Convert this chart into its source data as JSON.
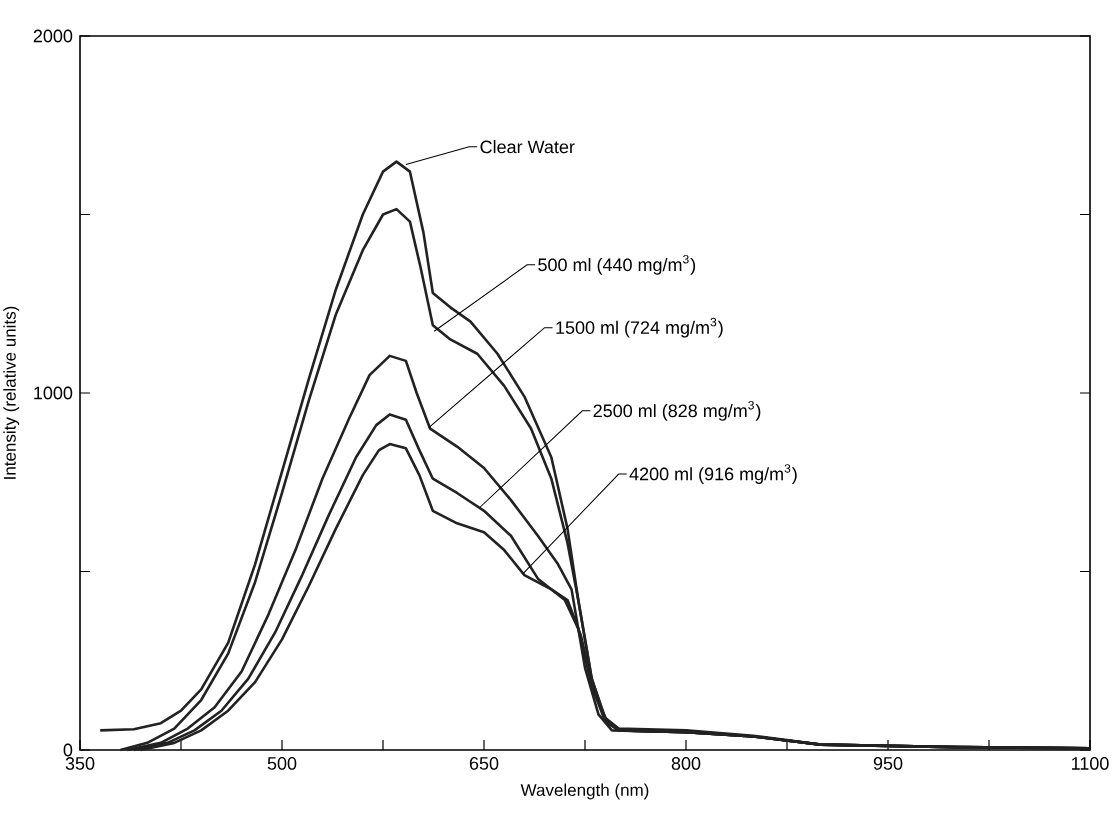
{
  "chart_data": {
    "type": "line",
    "xlabel": "Wavelength (nm)",
    "ylabel": "Intensity (relative units)",
    "xlim": [
      350,
      1100
    ],
    "ylim": [
      0,
      2000
    ],
    "xticks": [
      350,
      {
        "value": 425,
        "label": null
      },
      500,
      {
        "value": 575,
        "label": null
      },
      650,
      {
        "value": 725,
        "label": null
      },
      800,
      {
        "value": 875,
        "label": null
      },
      950,
      {
        "value": 1025,
        "label": null
      },
      1100
    ],
    "yticks": [
      0,
      {
        "value": 500,
        "label": null
      },
      1000,
      {
        "value": 1500,
        "label": null
      },
      2000
    ],
    "grid": false,
    "marker": "none",
    "line_style": "solid",
    "series": [
      {
        "color": "#222222",
        "x": [
          365,
          390,
          410,
          425,
          440,
          460,
          480,
          500,
          520,
          540,
          560,
          575,
          585,
          595,
          605,
          612,
          625,
          640,
          660,
          680,
          700,
          712,
          720,
          730,
          740,
          750,
          800,
          850,
          900,
          1000,
          1100
        ],
        "values": [
          55,
          58,
          75,
          110,
          170,
          300,
          520,
          780,
          1040,
          1290,
          1500,
          1620,
          1648,
          1620,
          1450,
          1280,
          1240,
          1200,
          1110,
          990,
          820,
          620,
          420,
          200,
          90,
          60,
          55,
          40,
          15,
          8,
          5
        ]
      },
      {
        "color": "#222222",
        "x": [
          380,
          400,
          420,
          440,
          460,
          480,
          500,
          520,
          540,
          560,
          575,
          585,
          595,
          603,
          612,
          625,
          645,
          665,
          685,
          700,
          712,
          720,
          730,
          740,
          750,
          800,
          850,
          900,
          1000,
          1100
        ],
        "values": [
          0,
          20,
          60,
          140,
          270,
          470,
          720,
          980,
          1220,
          1400,
          1500,
          1515,
          1480,
          1350,
          1190,
          1150,
          1110,
          1020,
          900,
          760,
          580,
          420,
          200,
          85,
          55,
          50,
          38,
          15,
          8,
          5
        ]
      },
      {
        "color": "#222222",
        "x": [
          385,
          410,
          430,
          450,
          470,
          490,
          510,
          530,
          550,
          565,
          580,
          592,
          600,
          610,
          630,
          650,
          670,
          690,
          705,
          715,
          725,
          735,
          745,
          800,
          850,
          900,
          1000,
          1100
        ],
        "values": [
          0,
          20,
          60,
          120,
          220,
          380,
          560,
          760,
          930,
          1050,
          1104,
          1090,
          1000,
          900,
          850,
          790,
          700,
          600,
          520,
          450,
          230,
          100,
          55,
          50,
          38,
          15,
          8,
          5
        ]
      },
      {
        "color": "#222222",
        "x": [
          390,
          415,
          435,
          455,
          475,
          495,
          515,
          535,
          555,
          570,
          580,
          592,
          602,
          612,
          630,
          650,
          670,
          690,
          710,
          720,
          730,
          740,
          750,
          800,
          850,
          900,
          1000,
          1100
        ],
        "values": [
          0,
          20,
          55,
          110,
          200,
          330,
          490,
          660,
          820,
          910,
          940,
          925,
          840,
          760,
          720,
          670,
          600,
          480,
          420,
          340,
          180,
          80,
          55,
          50,
          38,
          15,
          8,
          5
        ]
      },
      {
        "color": "#222222",
        "x": [
          395,
          420,
          440,
          460,
          480,
          500,
          520,
          540,
          560,
          572,
          580,
          592,
          602,
          612,
          630,
          650,
          665,
          680,
          700,
          712,
          722,
          732,
          742,
          752,
          800,
          850,
          900,
          1000,
          1100
        ],
        "values": [
          0,
          20,
          55,
          110,
          190,
          310,
          460,
          620,
          770,
          840,
          857,
          845,
          770,
          670,
          635,
          610,
          560,
          490,
          450,
          420,
          320,
          160,
          75,
          55,
          50,
          38,
          15,
          8,
          5
        ]
      }
    ],
    "annotations": [
      {
        "text": "Clear Water",
        "x": 592,
        "y": 1640
      },
      {
        "text": "500 ml (440 mg/m$^{3}$)",
        "x": 613,
        "y": 1173
      },
      {
        "text": "1500 ml (724 mg/m$^{3}$)",
        "x": 609,
        "y": 903
      },
      {
        "text": "2500 ml (828 mg/m$^{3}$)",
        "x": 647,
        "y": 680
      },
      {
        "text": "4200 ml (916 mg/m$^{3}$)",
        "x": 679,
        "y": 494
      }
    ]
  }
}
